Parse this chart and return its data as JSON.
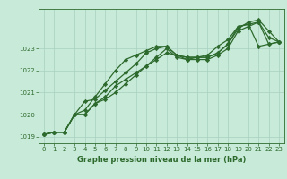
{
  "xlabel": "Graphe pression niveau de la mer (hPa)",
  "background_color": "#c8ead8",
  "plot_bg_color": "#c8ead8",
  "grid_color": "#a8cfc0",
  "line_color": "#2d6a2d",
  "marker": "D",
  "markersize": 2.2,
  "linewidth": 0.9,
  "ylim": [
    1018.7,
    1024.8
  ],
  "xlim": [
    -0.5,
    23.5
  ],
  "yticks": [
    1019,
    1020,
    1021,
    1022,
    1023
  ],
  "ytick_labels": [
    "1019",
    "1020",
    "1021",
    "1022",
    "1023"
  ],
  "xticks": [
    0,
    1,
    2,
    3,
    4,
    5,
    6,
    7,
    8,
    9,
    10,
    11,
    12,
    13,
    14,
    15,
    16,
    17,
    18,
    19,
    20,
    21,
    22,
    23
  ],
  "series": [
    [
      1019.1,
      1019.2,
      1019.2,
      1020.0,
      1020.6,
      1020.7,
      1021.1,
      1021.5,
      1021.9,
      1022.3,
      1022.8,
      1023.0,
      1023.1,
      1022.7,
      1022.6,
      1022.6,
      1022.6,
      1022.8,
      1023.2,
      1024.0,
      1024.1,
      1023.1,
      1023.2,
      1023.3
    ],
    [
      1019.1,
      1019.2,
      1019.2,
      1020.0,
      1020.0,
      1020.5,
      1020.8,
      1021.3,
      1021.6,
      1021.9,
      1022.2,
      1022.5,
      1022.8,
      1022.7,
      1022.5,
      1022.6,
      1022.7,
      1023.1,
      1023.4,
      1024.0,
      1024.1,
      1024.2,
      1023.2,
      1023.3
    ],
    [
      1019.1,
      1019.2,
      1019.2,
      1020.0,
      1020.0,
      1020.5,
      1020.7,
      1021.0,
      1021.4,
      1021.8,
      1022.2,
      1022.6,
      1023.0,
      1022.6,
      1022.5,
      1022.5,
      1022.5,
      1022.7,
      1023.0,
      1023.8,
      1024.0,
      1024.2,
      1023.5,
      1023.3
    ],
    [
      1019.1,
      1019.2,
      1019.2,
      1020.0,
      1020.2,
      1020.8,
      1021.4,
      1022.0,
      1022.5,
      1022.7,
      1022.9,
      1023.1,
      1023.1,
      1022.7,
      1022.6,
      1022.6,
      1022.6,
      1022.8,
      1023.2,
      1023.9,
      1024.2,
      1024.3,
      1023.8,
      1023.3
    ]
  ]
}
